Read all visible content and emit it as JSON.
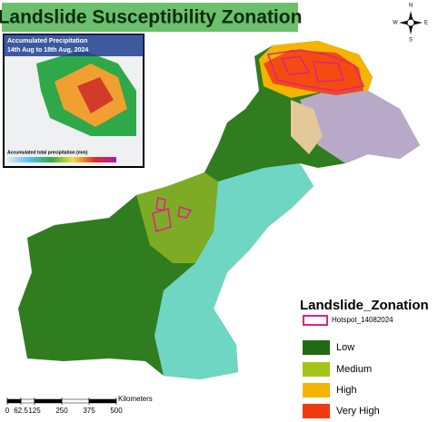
{
  "title": "Landslide Susceptibility Zonation",
  "inset": {
    "title": "Accumulated Precipitation",
    "date": "14th Aug to 18th Aug, 2024",
    "caption": "Accumulated total precipitation (mm)"
  },
  "legend": {
    "title": "Landslide_Zonation",
    "items": [
      {
        "label": "Hotspot_14082024",
        "color": "#e0218a",
        "outline": true
      },
      {
        "label": "Low",
        "color": "#1e6b12"
      },
      {
        "label": "Medium",
        "color": "#a6c31a"
      },
      {
        "label": "High",
        "color": "#f5b400"
      },
      {
        "label": "Very High",
        "color": "#f23a10"
      }
    ]
  },
  "scale": {
    "unit": "Kilometers",
    "ticks": [
      0,
      62.5,
      125,
      250,
      375,
      500
    ]
  },
  "compass": {
    "n": "N",
    "e": "E",
    "s": "S",
    "w": "W"
  }
}
